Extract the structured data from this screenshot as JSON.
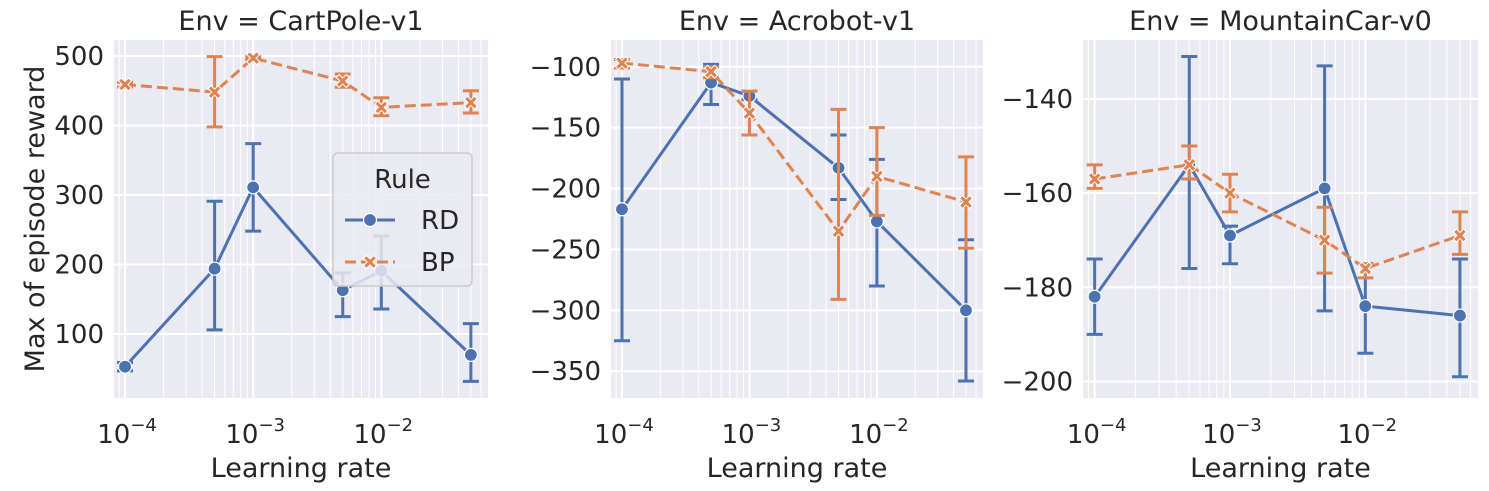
{
  "chart_data": [
    {
      "type": "line",
      "title": "Env = CartPole-v1",
      "xlabel": "Learning rate",
      "ylabel": "Max of episode reward",
      "x_scale": "log",
      "x_ticks": [
        {
          "value": 0.0001,
          "base": "10",
          "exp": "−4"
        },
        {
          "value": 0.001,
          "base": "10",
          "exp": "−3"
        },
        {
          "value": 0.01,
          "base": "10",
          "exp": "−2"
        }
      ],
      "y_ticks": [
        "100",
        "200",
        "300",
        "400",
        "500"
      ],
      "xlim": [
        8.2e-05,
        0.068
      ],
      "ylim": [
        8,
        523
      ],
      "grid": true,
      "legend": {
        "title": "Rule",
        "placement": "center-right"
      },
      "x": [
        0.0001,
        0.0005,
        0.001,
        0.005,
        0.01,
        0.05
      ],
      "series": [
        {
          "name": "RD",
          "color": "#4c72b0",
          "marker": "circle",
          "dash": "solid",
          "values": [
            53,
            194,
            311,
            163,
            191,
            70
          ],
          "err_low": [
            47,
            106,
            248,
            125,
            136,
            32
          ],
          "err_high": [
            59,
            291,
            374,
            188,
            241,
            115
          ]
        },
        {
          "name": "BP",
          "color": "#dd8452",
          "marker": "x",
          "dash": "dashed",
          "values": [
            459,
            448,
            497,
            464,
            426,
            433
          ],
          "err_low": [
            455,
            398,
            495,
            455,
            414,
            418
          ],
          "err_high": [
            462,
            499,
            499,
            474,
            440,
            450
          ]
        }
      ]
    },
    {
      "type": "line",
      "title": "Env = Acrobot-v1",
      "xlabel": "Learning rate",
      "ylabel": "",
      "x_scale": "log",
      "x_ticks": [
        {
          "value": 0.0001,
          "base": "10",
          "exp": "−4"
        },
        {
          "value": 0.001,
          "base": "10",
          "exp": "−3"
        },
        {
          "value": 0.01,
          "base": "10",
          "exp": "−2"
        }
      ],
      "y_ticks": [
        "−350",
        "−300",
        "−250",
        "−200",
        "−150",
        "−100"
      ],
      "xlim": [
        8.2e-05,
        0.068
      ],
      "ylim": [
        -372,
        -78
      ],
      "grid": true,
      "x": [
        0.0001,
        0.0005,
        0.001,
        0.005,
        0.01,
        0.05
      ],
      "series": [
        {
          "name": "RD",
          "color": "#4c72b0",
          "marker": "circle",
          "dash": "solid",
          "values": [
            -217,
            -113,
            -124,
            -183,
            -227,
            -300
          ],
          "err_low": [
            -325,
            -131,
            -127,
            -209,
            -280,
            -358
          ],
          "err_high": [
            -110,
            -98,
            -120,
            -156,
            -176,
            -242
          ]
        },
        {
          "name": "BP",
          "color": "#dd8452",
          "marker": "x",
          "dash": "dashed",
          "values": [
            -97,
            -104,
            -138,
            -235,
            -190,
            -211
          ],
          "err_low": [
            -101,
            -109,
            -156,
            -291,
            -222,
            -249
          ],
          "err_high": [
            -94,
            -100,
            -120,
            -135,
            -150,
            -174
          ]
        }
      ]
    },
    {
      "type": "line",
      "title": "Env = MountainCar-v0",
      "xlabel": "Learning rate",
      "ylabel": "",
      "x_scale": "log",
      "x_ticks": [
        {
          "value": 0.0001,
          "base": "10",
          "exp": "−4"
        },
        {
          "value": 0.001,
          "base": "10",
          "exp": "−3"
        },
        {
          "value": 0.01,
          "base": "10",
          "exp": "−2"
        }
      ],
      "y_ticks": [
        "−200",
        "−180",
        "−160",
        "−140"
      ],
      "xlim": [
        8.2e-05,
        0.068
      ],
      "ylim": [
        -203.5,
        -127.5
      ],
      "grid": true,
      "x": [
        0.0001,
        0.0005,
        0.001,
        0.005,
        0.01,
        0.05
      ],
      "series": [
        {
          "name": "RD",
          "color": "#4c72b0",
          "marker": "circle",
          "dash": "solid",
          "values": [
            -182,
            -154,
            -169,
            -159,
            -184,
            -186
          ],
          "err_low": [
            -190,
            -176,
            -175,
            -185,
            -194,
            -199
          ],
          "err_high": [
            -174,
            -131,
            -167,
            -133,
            -175,
            -174
          ]
        },
        {
          "name": "BP",
          "color": "#dd8452",
          "marker": "x",
          "dash": "dashed",
          "values": [
            -157,
            -154,
            -160,
            -170,
            -176,
            -169
          ],
          "err_low": [
            -159,
            -157,
            -164,
            -177,
            -178,
            -173
          ],
          "err_high": [
            -154,
            -150,
            -156,
            -163,
            -175,
            -164
          ]
        }
      ]
    }
  ]
}
